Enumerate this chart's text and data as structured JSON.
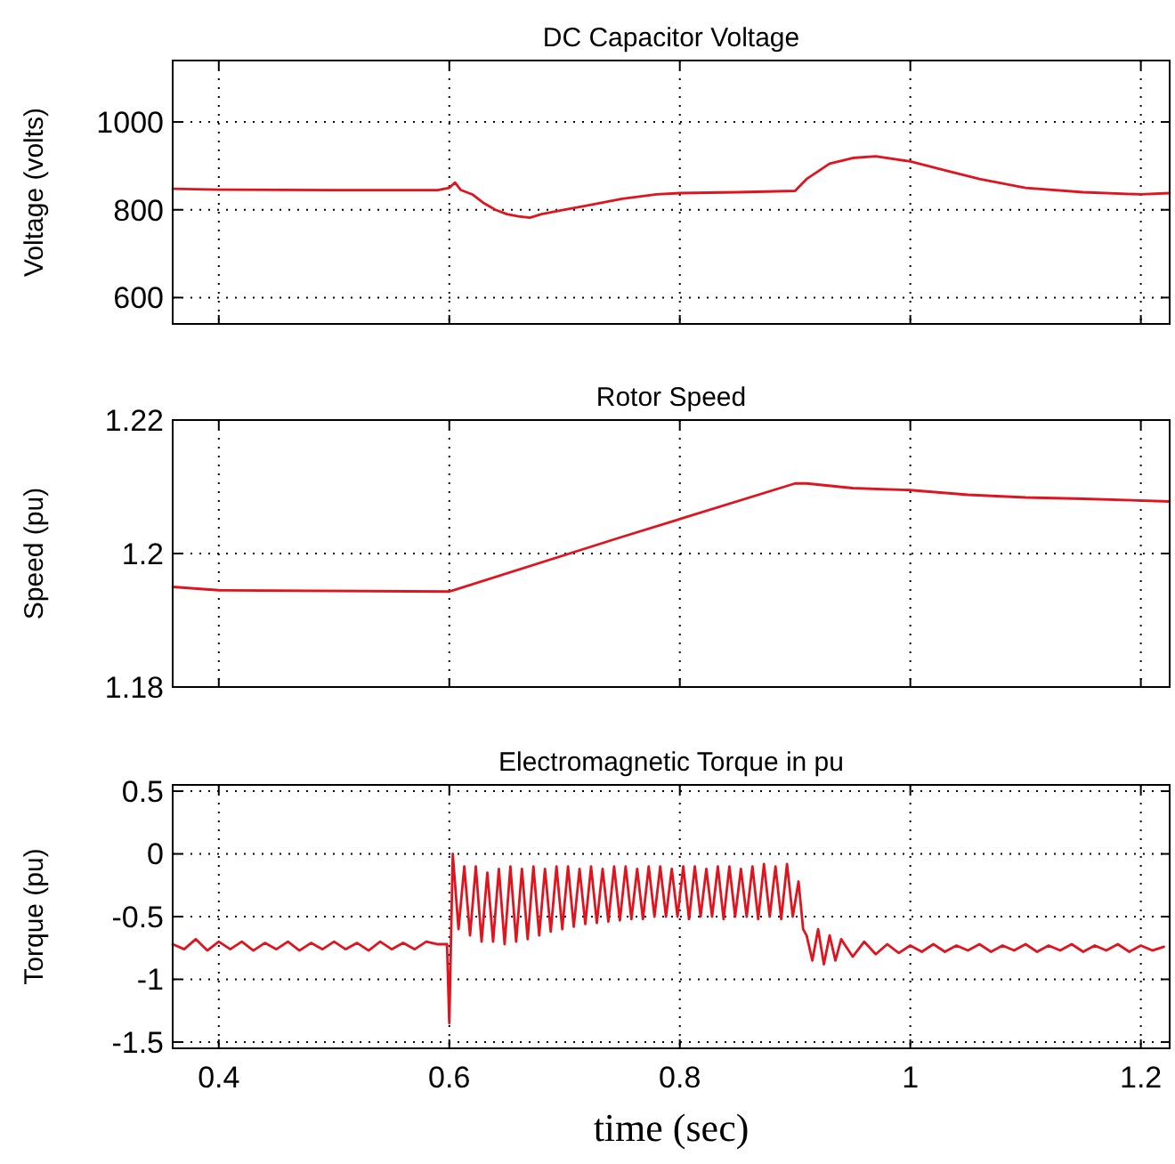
{
  "chart_data": [
    {
      "type": "line",
      "title": "DC Capacitor Voltage",
      "ylabel": "Voltage (volts)",
      "xlim": [
        0.36,
        1.225
      ],
      "xticks": [
        0.4,
        0.6,
        0.8,
        1,
        1.2
      ],
      "ylim": [
        540,
        1140
      ],
      "yticks": [
        600,
        800,
        1000
      ],
      "grid": true,
      "tick_labels": "y",
      "series": [
        {
          "color": "#e0141e",
          "x": [
            0.36,
            0.4,
            0.5,
            0.59,
            0.6,
            0.605,
            0.61,
            0.62,
            0.63,
            0.64,
            0.65,
            0.66,
            0.67,
            0.68,
            0.7,
            0.72,
            0.75,
            0.78,
            0.8,
            0.85,
            0.9,
            0.91,
            0.93,
            0.95,
            0.97,
            1.0,
            1.03,
            1.06,
            1.1,
            1.15,
            1.2,
            1.225
          ],
          "values": [
            848,
            846,
            845,
            845,
            850,
            862,
            845,
            835,
            815,
            800,
            790,
            785,
            782,
            790,
            800,
            810,
            825,
            835,
            838,
            840,
            843,
            870,
            905,
            918,
            922,
            910,
            890,
            870,
            850,
            840,
            835,
            838
          ]
        }
      ]
    },
    {
      "type": "line",
      "title": "Rotor Speed",
      "ylabel": "Speed (pu)",
      "xlim": [
        0.36,
        1.225
      ],
      "xticks": [
        0.4,
        0.6,
        0.8,
        1,
        1.2
      ],
      "ylim": [
        1.18,
        1.22
      ],
      "yticks": [
        1.18,
        1.2,
        1.22
      ],
      "grid": true,
      "tick_labels": "y",
      "series": [
        {
          "color": "#e0141e",
          "x": [
            0.36,
            0.4,
            0.6,
            0.75,
            0.9,
            0.91,
            0.95,
            1.0,
            1.05,
            1.1,
            1.15,
            1.225
          ],
          "values": [
            1.195,
            1.1945,
            1.1943,
            1.2025,
            1.2105,
            1.2105,
            1.2098,
            1.2095,
            1.2088,
            1.2084,
            1.2082,
            1.2078
          ]
        }
      ]
    },
    {
      "type": "line",
      "title": "Electromagnetic Torque in pu",
      "ylabel": "Torque (pu)",
      "xlabel": "time (sec)",
      "xlim": [
        0.36,
        1.225
      ],
      "xticks": [
        0.4,
        0.6,
        0.8,
        1,
        1.2
      ],
      "ylim": [
        -1.55,
        0.55
      ],
      "yticks": [
        -1.5,
        -1,
        -0.5,
        0,
        0.5
      ],
      "grid": true,
      "series": [
        {
          "color": "#e0141e",
          "x": [
            0.36,
            0.37,
            0.38,
            0.39,
            0.4,
            0.41,
            0.42,
            0.43,
            0.44,
            0.45,
            0.46,
            0.47,
            0.48,
            0.49,
            0.5,
            0.51,
            0.52,
            0.53,
            0.54,
            0.55,
            0.56,
            0.57,
            0.58,
            0.59,
            0.598,
            0.6,
            0.603,
            0.608,
            0.613,
            0.618,
            0.623,
            0.628,
            0.633,
            0.638,
            0.643,
            0.648,
            0.653,
            0.658,
            0.663,
            0.668,
            0.673,
            0.678,
            0.683,
            0.688,
            0.693,
            0.698,
            0.703,
            0.708,
            0.713,
            0.718,
            0.723,
            0.728,
            0.733,
            0.738,
            0.743,
            0.748,
            0.753,
            0.758,
            0.763,
            0.768,
            0.773,
            0.778,
            0.783,
            0.788,
            0.793,
            0.798,
            0.803,
            0.808,
            0.813,
            0.818,
            0.823,
            0.828,
            0.833,
            0.838,
            0.843,
            0.848,
            0.853,
            0.858,
            0.863,
            0.868,
            0.873,
            0.878,
            0.883,
            0.888,
            0.893,
            0.898,
            0.903,
            0.907,
            0.91,
            0.915,
            0.92,
            0.925,
            0.93,
            0.935,
            0.94,
            0.95,
            0.96,
            0.97,
            0.98,
            0.99,
            1.0,
            1.01,
            1.02,
            1.03,
            1.04,
            1.05,
            1.06,
            1.07,
            1.08,
            1.09,
            1.1,
            1.11,
            1.12,
            1.13,
            1.14,
            1.15,
            1.16,
            1.17,
            1.18,
            1.19,
            1.2,
            1.21,
            1.22
          ],
          "values": [
            -0.72,
            -0.76,
            -0.68,
            -0.77,
            -0.7,
            -0.76,
            -0.7,
            -0.77,
            -0.71,
            -0.76,
            -0.7,
            -0.77,
            -0.71,
            -0.76,
            -0.7,
            -0.76,
            -0.71,
            -0.77,
            -0.7,
            -0.76,
            -0.71,
            -0.76,
            -0.7,
            -0.72,
            -0.72,
            -1.35,
            0.0,
            -0.6,
            -0.1,
            -0.65,
            -0.1,
            -0.7,
            -0.15,
            -0.7,
            -0.12,
            -0.72,
            -0.1,
            -0.7,
            -0.12,
            -0.68,
            -0.1,
            -0.65,
            -0.12,
            -0.62,
            -0.1,
            -0.6,
            -0.1,
            -0.58,
            -0.12,
            -0.56,
            -0.1,
            -0.55,
            -0.12,
            -0.54,
            -0.1,
            -0.53,
            -0.1,
            -0.52,
            -0.12,
            -0.52,
            -0.1,
            -0.5,
            -0.1,
            -0.5,
            -0.12,
            -0.5,
            -0.1,
            -0.52,
            -0.1,
            -0.5,
            -0.12,
            -0.5,
            -0.1,
            -0.52,
            -0.1,
            -0.5,
            -0.12,
            -0.5,
            -0.1,
            -0.52,
            -0.08,
            -0.5,
            -0.1,
            -0.52,
            -0.08,
            -0.5,
            -0.22,
            -0.6,
            -0.65,
            -0.85,
            -0.6,
            -0.88,
            -0.65,
            -0.85,
            -0.68,
            -0.82,
            -0.7,
            -0.8,
            -0.72,
            -0.79,
            -0.73,
            -0.78,
            -0.72,
            -0.78,
            -0.73,
            -0.77,
            -0.72,
            -0.78,
            -0.73,
            -0.77,
            -0.72,
            -0.78,
            -0.73,
            -0.77,
            -0.72,
            -0.78,
            -0.73,
            -0.77,
            -0.72,
            -0.78,
            -0.73,
            -0.77,
            -0.74
          ]
        }
      ]
    }
  ]
}
